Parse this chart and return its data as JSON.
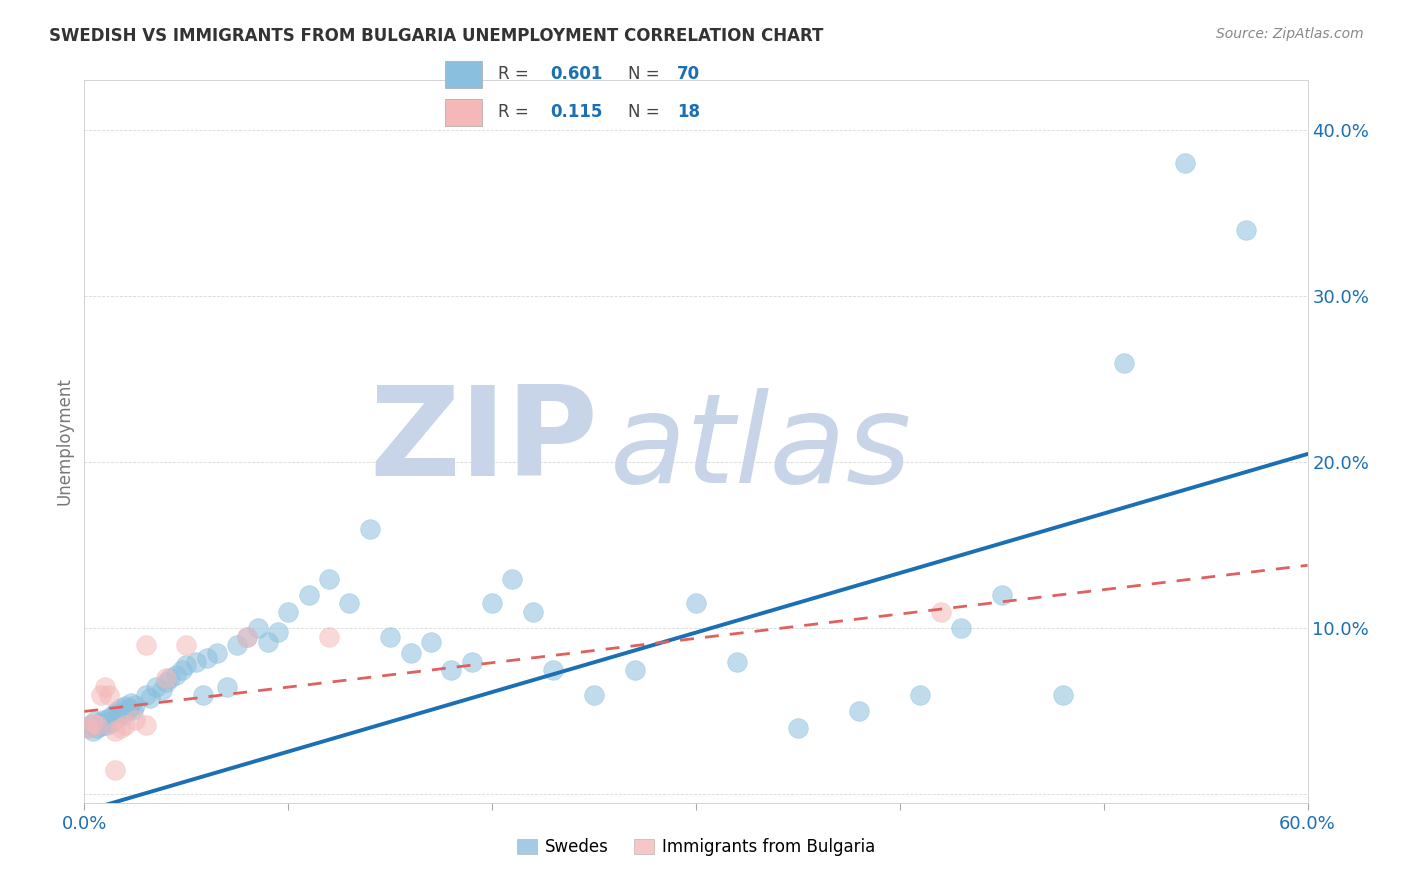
{
  "title": "SWEDISH VS IMMIGRANTS FROM BULGARIA UNEMPLOYMENT CORRELATION CHART",
  "source": "Source: ZipAtlas.com",
  "ylabel_label": "Unemployment",
  "xlim": [
    0.0,
    0.6
  ],
  "ylim": [
    -0.005,
    0.43
  ],
  "xticks": [
    0.0,
    0.1,
    0.2,
    0.3,
    0.4,
    0.5,
    0.6
  ],
  "yticks": [
    0.0,
    0.1,
    0.2,
    0.3,
    0.4
  ],
  "ytick_labels": [
    "",
    "10.0%",
    "20.0%",
    "30.0%",
    "40.0%"
  ],
  "xtick_labels": [
    "0.0%",
    "",
    "",
    "",
    "",
    "",
    "60.0%"
  ],
  "legend_r1": "R = 0.601",
  "legend_n1": "N = 70",
  "legend_r2": "R =  0.115",
  "legend_n2": "N = 18",
  "swedes_color": "#8bbfde",
  "immigrants_color": "#f5b8b8",
  "line_swedes_color": "#1a6fb5",
  "line_immigrants_color": "#e06060",
  "swedes_x": [
    0.002,
    0.003,
    0.004,
    0.005,
    0.006,
    0.007,
    0.008,
    0.009,
    0.01,
    0.011,
    0.012,
    0.013,
    0.014,
    0.015,
    0.016,
    0.017,
    0.018,
    0.019,
    0.02,
    0.021,
    0.022,
    0.023,
    0.024,
    0.025,
    0.03,
    0.032,
    0.035,
    0.038,
    0.04,
    0.042,
    0.045,
    0.048,
    0.05,
    0.055,
    0.058,
    0.06,
    0.065,
    0.07,
    0.075,
    0.08,
    0.085,
    0.09,
    0.095,
    0.1,
    0.11,
    0.12,
    0.13,
    0.14,
    0.15,
    0.16,
    0.17,
    0.18,
    0.19,
    0.2,
    0.21,
    0.22,
    0.23,
    0.25,
    0.27,
    0.3,
    0.32,
    0.35,
    0.38,
    0.41,
    0.43,
    0.45,
    0.48,
    0.51,
    0.54,
    0.57
  ],
  "swedes_y": [
    0.04,
    0.042,
    0.038,
    0.044,
    0.04,
    0.043,
    0.041,
    0.045,
    0.044,
    0.042,
    0.046,
    0.043,
    0.048,
    0.045,
    0.05,
    0.047,
    0.052,
    0.048,
    0.053,
    0.05,
    0.052,
    0.055,
    0.051,
    0.054,
    0.06,
    0.058,
    0.065,
    0.063,
    0.068,
    0.07,
    0.072,
    0.075,
    0.078,
    0.08,
    0.06,
    0.082,
    0.085,
    0.065,
    0.09,
    0.095,
    0.1,
    0.092,
    0.098,
    0.11,
    0.12,
    0.13,
    0.115,
    0.16,
    0.095,
    0.085,
    0.092,
    0.075,
    0.08,
    0.115,
    0.13,
    0.11,
    0.075,
    0.06,
    0.075,
    0.115,
    0.08,
    0.04,
    0.05,
    0.06,
    0.1,
    0.12,
    0.06,
    0.26,
    0.38,
    0.34
  ],
  "immigrants_x": [
    0.002,
    0.004,
    0.006,
    0.008,
    0.01,
    0.012,
    0.015,
    0.018,
    0.02,
    0.025,
    0.03,
    0.04,
    0.05,
    0.08,
    0.12,
    0.03,
    0.42,
    0.015
  ],
  "immigrants_y": [
    0.04,
    0.043,
    0.042,
    0.06,
    0.065,
    0.06,
    0.038,
    0.04,
    0.042,
    0.045,
    0.042,
    0.07,
    0.09,
    0.095,
    0.095,
    0.09,
    0.11,
    0.015
  ],
  "swede_line_x0": 0.0,
  "swede_line_y0": -0.01,
  "swede_line_x1": 0.6,
  "swede_line_y1": 0.205,
  "imm_line_x0": 0.0,
  "imm_line_y0": 0.05,
  "imm_line_x1": 0.6,
  "imm_line_y1": 0.138,
  "background_color": "#ffffff",
  "grid_color": "#d0d0d0",
  "watermark_zip": "ZIP",
  "watermark_atlas": "atlas",
  "watermark_color_zip": "#c8d4e8",
  "watermark_color_atlas": "#c8d4e8"
}
